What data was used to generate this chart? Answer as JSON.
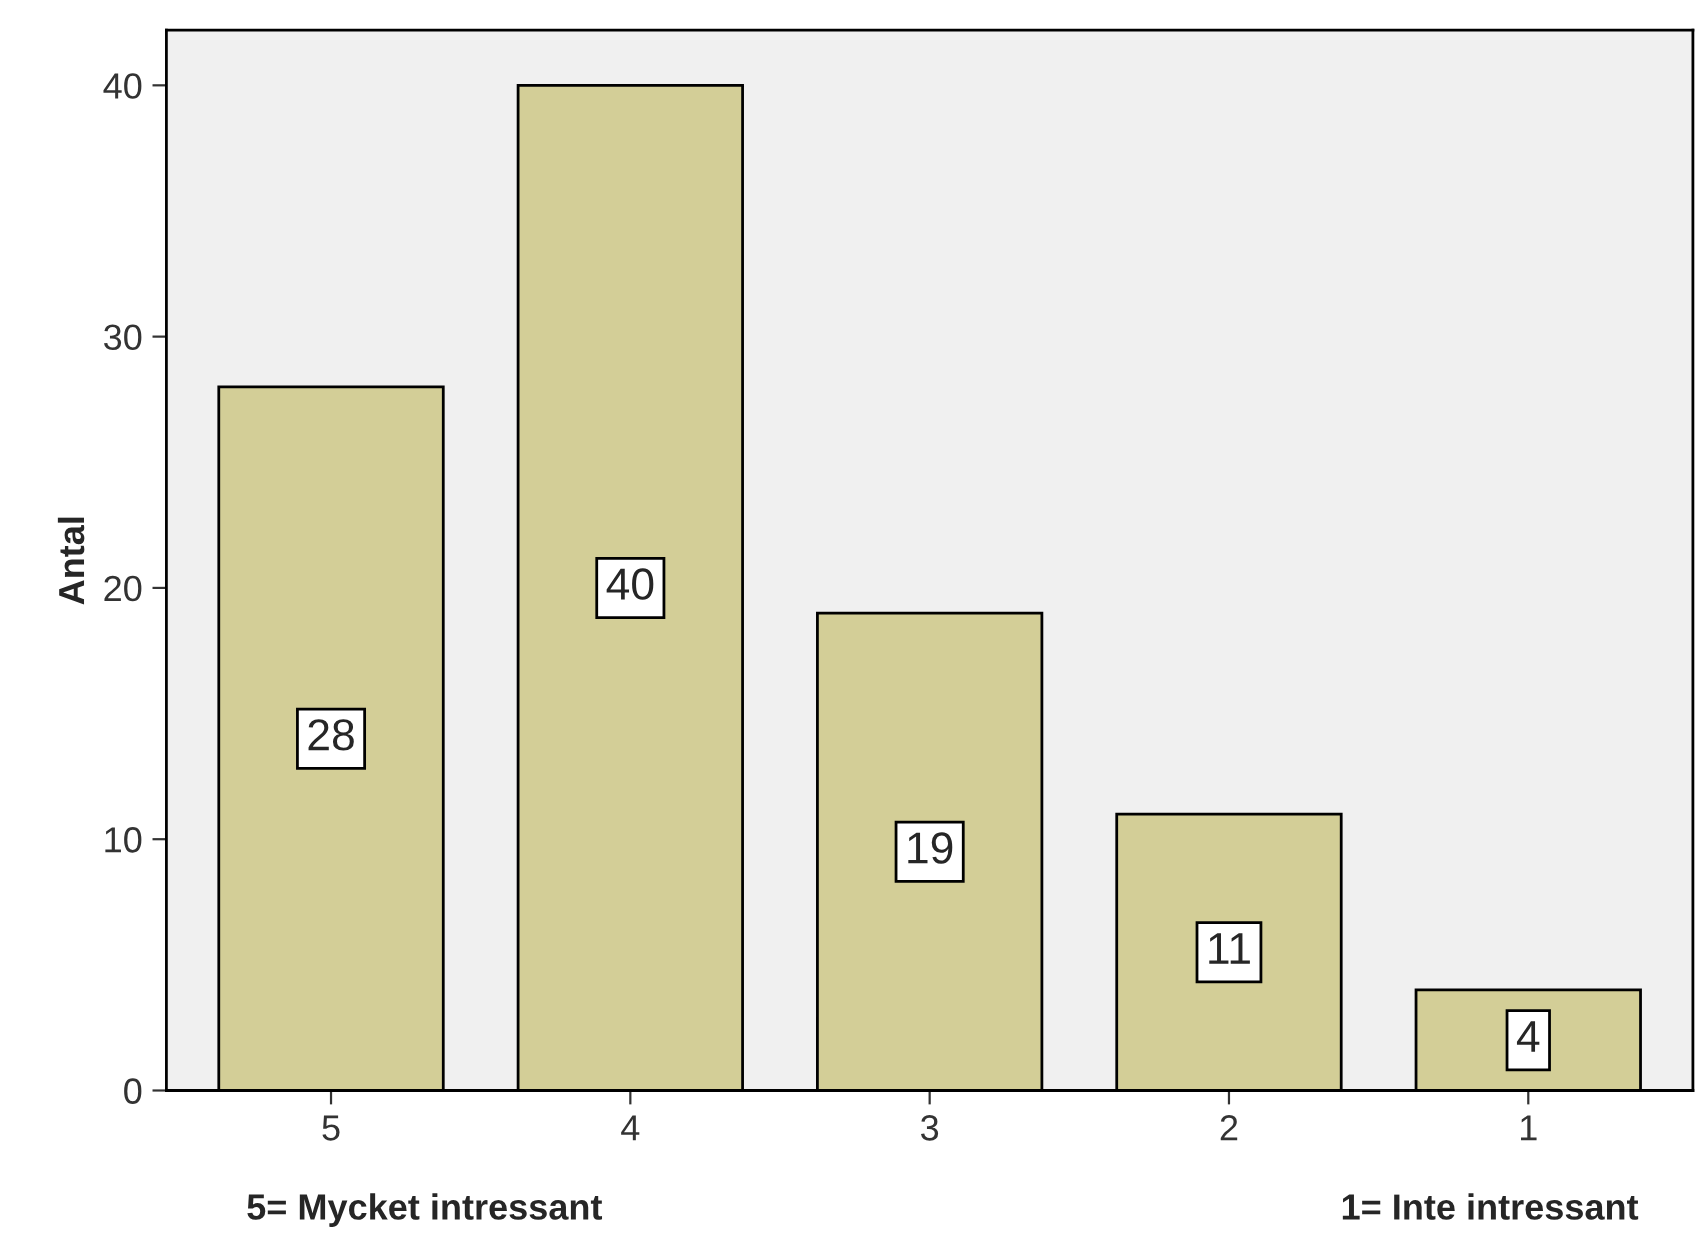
{
  "chart_data": {
    "type": "bar",
    "categories": [
      "5",
      "4",
      "3",
      "2",
      "1"
    ],
    "values": [
      28,
      40,
      19,
      11,
      4
    ],
    "color": "#d3ce97",
    "ylabel": "Antal",
    "ylim": [
      0,
      42.2
    ],
    "yticks": [
      0,
      10,
      20,
      30,
      40
    ],
    "grid": false,
    "data_labels": true,
    "annotations": [
      "5= Mycket intressant",
      "1= Inte intressant"
    ]
  }
}
